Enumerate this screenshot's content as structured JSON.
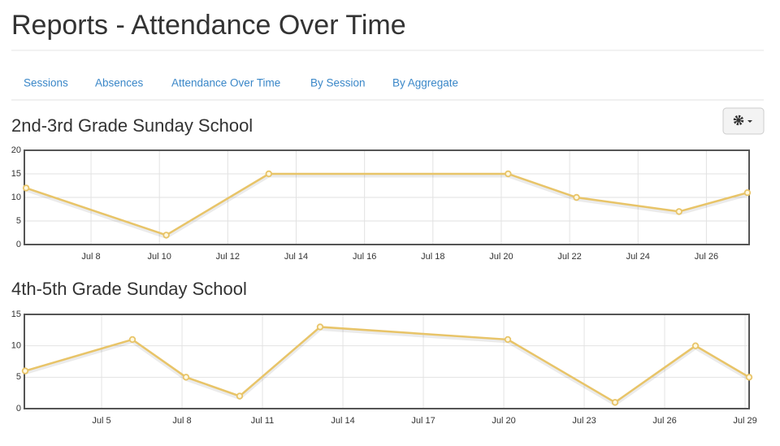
{
  "page_title": "Reports - Attendance Over Time",
  "tabs": [
    "Sessions",
    "Absences",
    "Attendance Over Time",
    "By Session",
    "By Aggregate"
  ],
  "chart_data": [
    {
      "type": "line",
      "title": "2nd-3rd Grade Sunday School",
      "x": [
        6.1,
        10.2,
        13.2,
        20.2,
        22.2,
        25.2,
        27.2
      ],
      "series": [
        {
          "color": "#e8c468",
          "values": [
            12,
            2,
            15,
            15,
            10,
            7,
            11
          ]
        }
      ],
      "xlim": [
        6.05,
        27.25
      ],
      "xticks": [
        {
          "value": 8,
          "label": "Jul 8"
        },
        {
          "value": 10,
          "label": "Jul 10"
        },
        {
          "value": 12,
          "label": "Jul 12"
        },
        {
          "value": 14,
          "label": "Jul 14"
        },
        {
          "value": 16,
          "label": "Jul 16"
        },
        {
          "value": 18,
          "label": "Jul 18"
        },
        {
          "value": 20,
          "label": "Jul 20"
        },
        {
          "value": 22,
          "label": "Jul 22"
        },
        {
          "value": 24,
          "label": "Jul 24"
        },
        {
          "value": 26,
          "label": "Jul 26"
        }
      ],
      "ylim": [
        0,
        20
      ],
      "yticks": [
        0,
        5,
        10,
        15,
        20
      ],
      "grid": true
    },
    {
      "type": "line",
      "title": "4th-5th Grade Sunday School",
      "x": [
        2.15,
        6.15,
        8.15,
        10.15,
        13.15,
        20.15,
        24.15,
        27.15,
        29.15
      ],
      "series": [
        {
          "color": "#e8c468",
          "values": [
            6,
            11,
            5,
            2,
            13,
            11,
            1,
            10,
            5
          ]
        }
      ],
      "xlim": [
        2.12,
        29.15
      ],
      "xticks": [
        {
          "value": 5,
          "label": "Jul 5"
        },
        {
          "value": 8,
          "label": "Jul 8"
        },
        {
          "value": 11,
          "label": "Jul 11"
        },
        {
          "value": 14,
          "label": "Jul 14"
        },
        {
          "value": 17,
          "label": "Jul 17"
        },
        {
          "value": 20,
          "label": "Jul 20"
        },
        {
          "value": 23,
          "label": "Jul 23"
        },
        {
          "value": 26,
          "label": "Jul 26"
        },
        {
          "value": 29,
          "label": "Jul 29"
        }
      ],
      "ylim": [
        0,
        15
      ],
      "yticks": [
        0,
        5,
        10,
        15
      ],
      "grid": true
    }
  ]
}
